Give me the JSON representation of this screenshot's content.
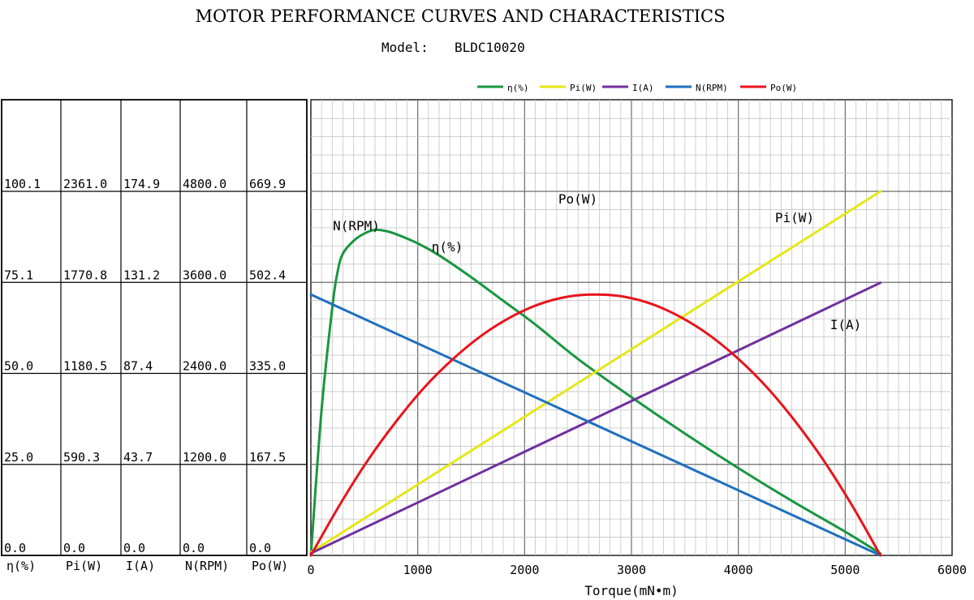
{
  "header": {
    "title": "MOTOR PERFORMANCE CURVES AND CHARACTERISTICS",
    "model_label": "Model:",
    "model_value": "BLDC10020"
  },
  "scale_table": {
    "columns": [
      {
        "key": "eta",
        "label": "η(%)",
        "values": [
          "100.1",
          "75.1",
          "50.0",
          "25.0",
          "0.0"
        ]
      },
      {
        "key": "pi",
        "label": "Pi(W)",
        "values": [
          "2361.0",
          "1770.8",
          "1180.5",
          "590.3",
          "0.0"
        ]
      },
      {
        "key": "i",
        "label": "I(A)",
        "values": [
          "174.9",
          "131.2",
          "87.4",
          "43.7",
          "0.0"
        ]
      },
      {
        "key": "n",
        "label": "N(RPM)",
        "values": [
          "4800.0",
          "3600.0",
          "2400.0",
          "1200.0",
          "0.0"
        ]
      },
      {
        "key": "po",
        "label": "Po(W)",
        "values": [
          "669.9",
          "502.4",
          "335.0",
          "167.5",
          "0.0"
        ]
      }
    ]
  },
  "chart_data": {
    "type": "line",
    "title": "MOTOR PERFORMANCE CURVES AND CHARACTERISTICS",
    "subtitle": "Model:   BLDC10020",
    "xlabel": "Torque(mN•m)",
    "xlim": [
      0,
      6000
    ],
    "x_ticks": [
      0,
      1000,
      2000,
      3000,
      4000,
      5000,
      6000
    ],
    "grid": true,
    "legend_position": "top",
    "series": [
      {
        "name": "η(%)",
        "curve_label": "η(%)",
        "color": "#1a9641",
        "unit_max": 100.1,
        "x": [
          0,
          100,
          200,
          250,
          300,
          400,
          500,
          600,
          700,
          800,
          1000,
          1200,
          1500,
          1800,
          2100,
          2500,
          3000,
          3500,
          4000,
          4500,
          5000,
          5330
        ],
        "y": [
          0,
          40,
          68,
          78,
          83,
          86.5,
          88.5,
          89.5,
          89.2,
          88.3,
          85.8,
          82.5,
          76.5,
          70,
          63.5,
          54,
          43.5,
          33.5,
          24,
          15,
          6.5,
          0.5
        ]
      },
      {
        "name": "Pi(W)",
        "curve_label": "Pi(W)",
        "color": "#e6e619",
        "unit_max": 2361.0,
        "x": [
          0,
          5330
        ],
        "y": [
          20,
          2361
        ]
      },
      {
        "name": "I(A)",
        "curve_label": "I(A)",
        "color": "#7030a0",
        "unit_max": 174.9,
        "x": [
          0,
          5330
        ],
        "y": [
          1,
          131
        ]
      },
      {
        "name": "N(RPM)",
        "curve_label": "N(RPM)",
        "color": "#1f6fbf",
        "unit_max": 4800.0,
        "x": [
          0,
          5330
        ],
        "y": [
          3440,
          0
        ]
      },
      {
        "name": "Po(W)",
        "curve_label": "Po(W)",
        "color": "#e8141c",
        "unit_max": 669.9,
        "x": [
          0,
          267,
          533,
          800,
          1066,
          1333,
          1600,
          1866,
          2133,
          2399,
          2665,
          2932,
          3198,
          3465,
          3731,
          3998,
          4264,
          4531,
          4797,
          5064,
          5330
        ],
        "y": [
          0,
          92,
          175,
          247,
          310,
          362,
          405,
          438,
          462,
          476,
          480,
          476,
          462,
          438,
          405,
          362,
          310,
          247,
          175,
          92,
          0
        ]
      }
    ]
  }
}
